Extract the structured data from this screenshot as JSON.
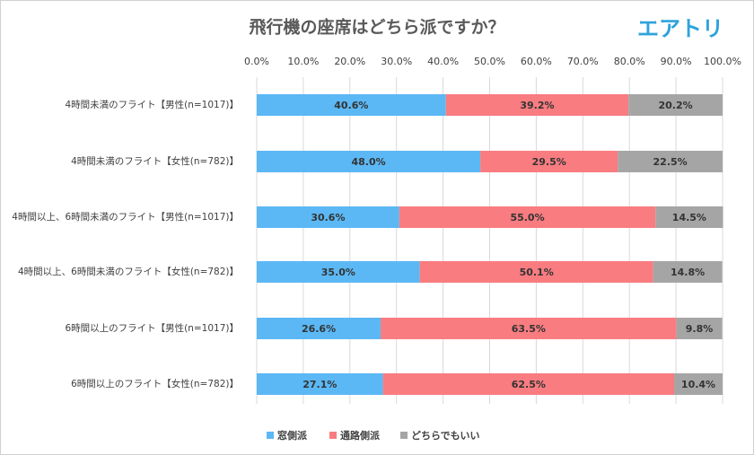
{
  "logo": "エアトリ",
  "chart_data": {
    "type": "stacked-barh",
    "title": "飛行機の座席はどちら派ですか？",
    "categories": [
      "4時間未満のフライト【男性(n=1017)】",
      "4時間未満のフライト【女性(n=782)】",
      "4時間以上、6時間未満のフライト【男性(n=1017)】",
      "4時間以上、6時間未満のフライト【女性(n=782)】",
      "6時間以上のフライト【男性(n=1017)】",
      "6時間以上のフライト【女性(n=782)】"
    ],
    "series": [
      {
        "name": "窓側派",
        "color": "#5bb8f5",
        "values": [
          40.6,
          48.0,
          30.6,
          35.0,
          26.6,
          27.1
        ],
        "value_labels": [
          "40.6%",
          "48.0%",
          "30.6%",
          "35.0%",
          "26.6%",
          "27.1%"
        ]
      },
      {
        "name": "通路側派",
        "color": "#f87c80",
        "values": [
          39.2,
          29.5,
          55.0,
          50.1,
          63.5,
          62.5
        ],
        "value_labels": [
          "39.2%",
          "29.5%",
          "55.0%",
          "50.1%",
          "63.5%",
          "62.5%"
        ]
      },
      {
        "name": "どちらでもいい",
        "color": "#a5a5a5",
        "values": [
          20.2,
          22.5,
          14.5,
          14.8,
          9.8,
          10.4
        ],
        "value_labels": [
          "20.2%",
          "22.5%",
          "14.5%",
          "14.8%",
          "9.8%",
          "10.4%"
        ]
      }
    ],
    "xlim": [
      0,
      100
    ],
    "xticks": [
      {
        "value": 0,
        "label": "0.0%"
      },
      {
        "value": 10,
        "label": "10.0%"
      },
      {
        "value": 20,
        "label": "20.0%"
      },
      {
        "value": 30,
        "label": "30.0%"
      },
      {
        "value": 40,
        "label": "40.0%"
      },
      {
        "value": 50,
        "label": "50.0%"
      },
      {
        "value": 60,
        "label": "60.0%"
      },
      {
        "value": 70,
        "label": "70.0%"
      },
      {
        "value": 80,
        "label": "80.0%"
      },
      {
        "value": 90,
        "label": "90.0%"
      },
      {
        "value": 100,
        "label": "100.0%"
      }
    ],
    "grid": true
  }
}
